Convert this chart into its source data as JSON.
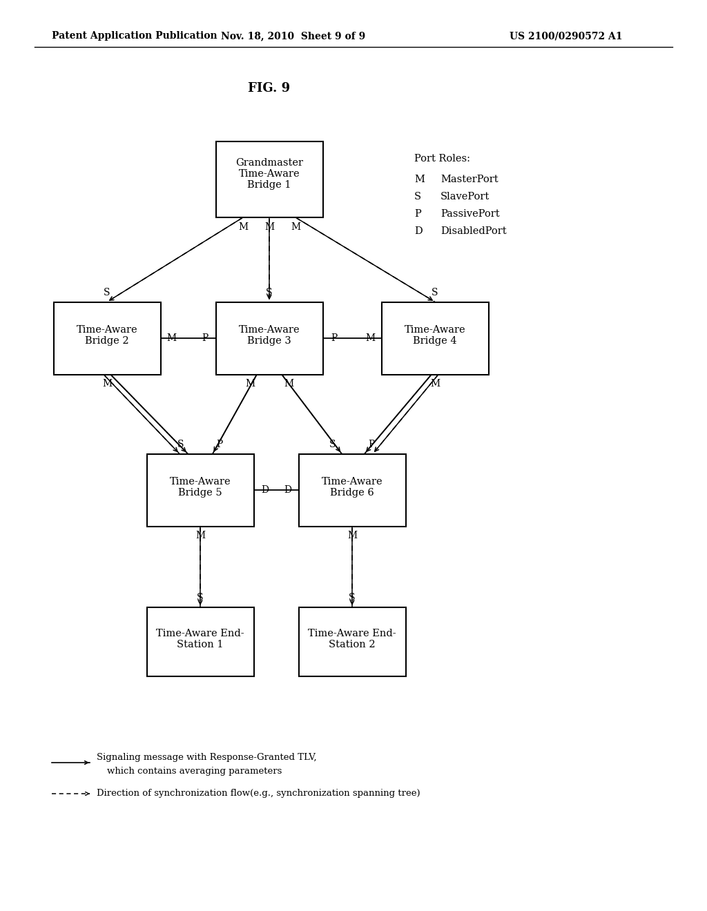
{
  "fig_label": "FIG. 9",
  "header_left": "Patent Application Publication",
  "header_center": "Nov. 18, 2010  Sheet 9 of 9",
  "header_right": "US 2100/0290572 A1",
  "background": "#ffffff",
  "header_patent": "US 2100/0290572 A1"
}
